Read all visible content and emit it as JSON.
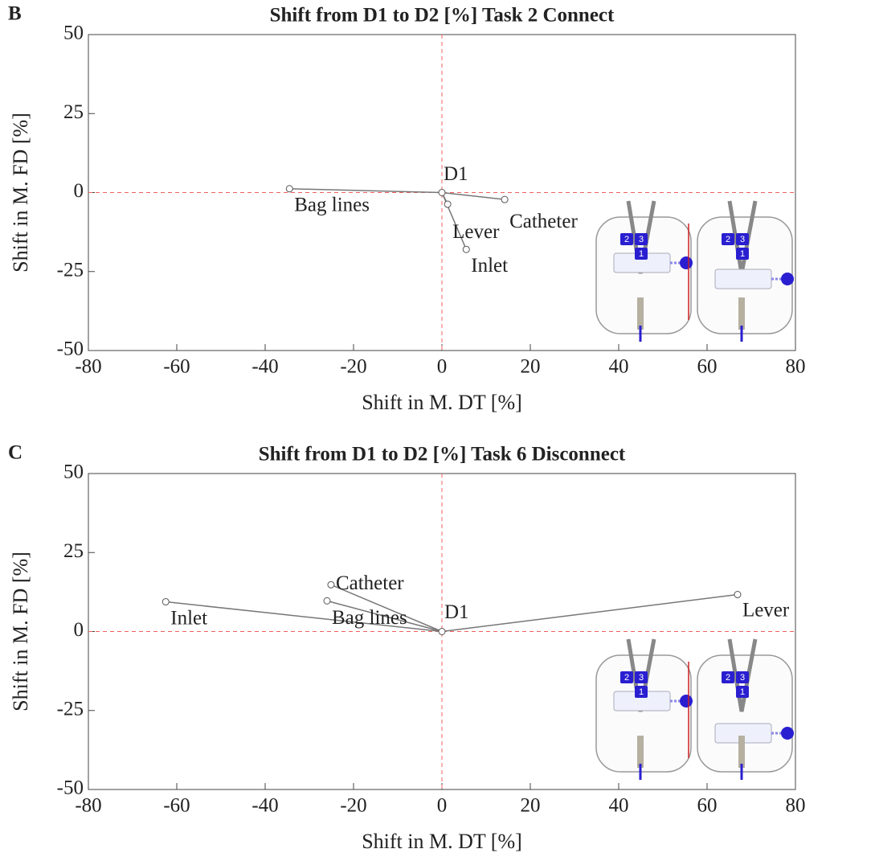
{
  "chart_data": [
    {
      "type": "scatter",
      "panel": "B",
      "title": "Shift from D1 to D2 [%] Task 2 Connect",
      "xlabel": "Shift in M. DT [%]",
      "ylabel": "Shift in M. FD [%]",
      "xlim": [
        -80,
        80
      ],
      "ylim": [
        -50,
        50
      ],
      "xticks": [
        -80,
        -60,
        -40,
        -20,
        0,
        20,
        40,
        60,
        80
      ],
      "yticks": [
        -50,
        -25,
        0,
        25,
        50
      ],
      "grid": false,
      "color": "#777777",
      "reference_color": "#f06060",
      "origin": {
        "label": "D1",
        "x": 0,
        "y": 0
      },
      "points": [
        {
          "label": "Bag lines",
          "x": -34.5,
          "y": 1.2
        },
        {
          "label": "Catheter",
          "x": 14.2,
          "y": -2.2
        },
        {
          "label": "Lever",
          "x": 1.3,
          "y": -3.7
        },
        {
          "label": "Inlet",
          "x": 5.5,
          "y": -18
        }
      ],
      "inset_labels": [
        "2",
        "3",
        "1"
      ]
    },
    {
      "type": "scatter",
      "panel": "C",
      "title": "Shift from D1 to D2 [%] Task 6 Disconnect",
      "xlabel": "Shift in M. DT [%]",
      "ylabel": "Shift in M. FD [%]",
      "xlim": [
        -80,
        80
      ],
      "ylim": [
        -50,
        50
      ],
      "xticks": [
        -80,
        -60,
        -40,
        -20,
        0,
        20,
        40,
        60,
        80
      ],
      "yticks": [
        -50,
        -25,
        0,
        25,
        50
      ],
      "grid": false,
      "color": "#777777",
      "reference_color": "#f06060",
      "origin": {
        "label": "D1",
        "x": 0,
        "y": 0
      },
      "points": [
        {
          "label": "Inlet",
          "x": -62.5,
          "y": 9.4
        },
        {
          "label": "Catheter",
          "x": -25.1,
          "y": 14.8
        },
        {
          "label": "Bag lines",
          "x": -26,
          "y": 9.7
        },
        {
          "label": "Lever",
          "x": 66.9,
          "y": 11.7
        }
      ],
      "inset_labels": [
        "2",
        "3",
        "1"
      ]
    }
  ]
}
